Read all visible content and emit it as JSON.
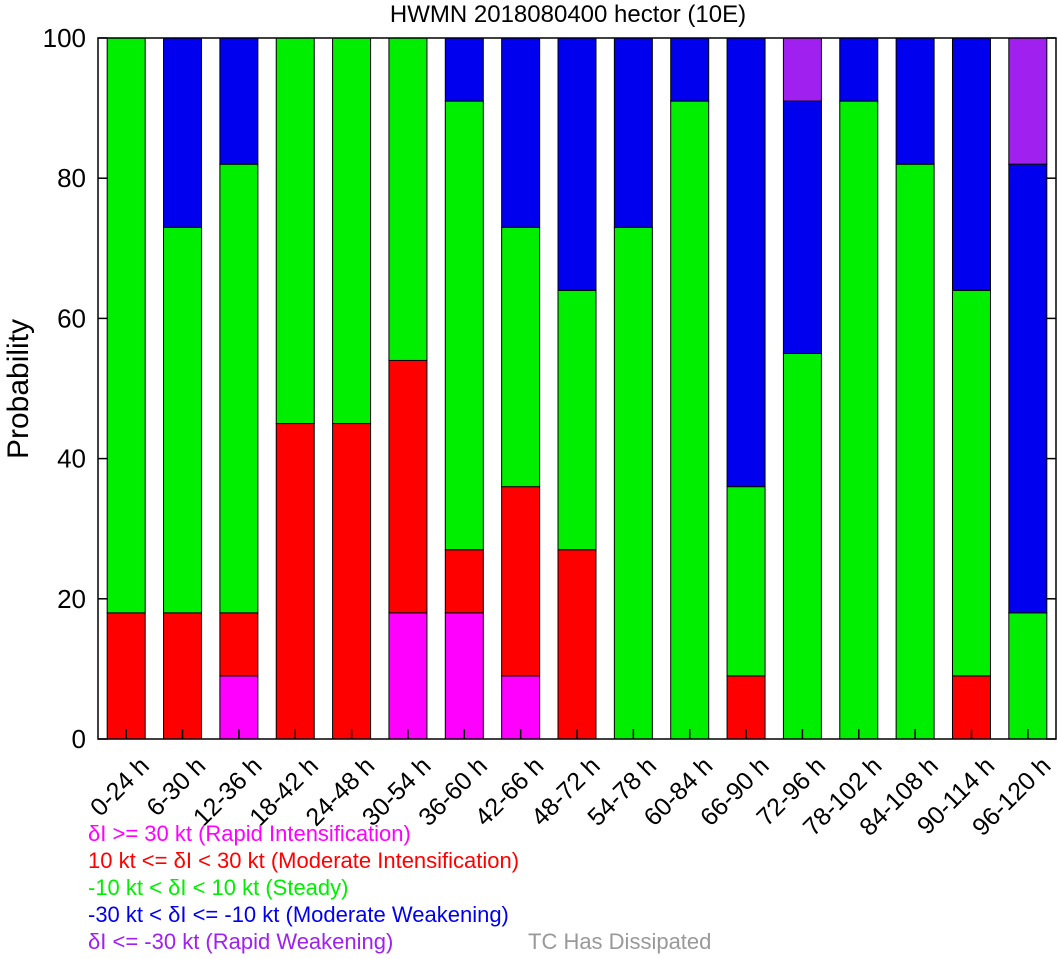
{
  "chart_data": {
    "type": "bar",
    "stacked": true,
    "title": "HWMN 2018080400 hector (10E)",
    "ylabel": "Probability",
    "xlabel": "",
    "ylim": [
      0,
      100
    ],
    "yticks": [
      0,
      20,
      40,
      60,
      80,
      100
    ],
    "grid": false,
    "categories": [
      "0-24 h",
      "6-30 h",
      "12-36 h",
      "18-42 h",
      "24-48 h",
      "30-54 h",
      "36-60 h",
      "42-66 h",
      "48-72 h",
      "54-78 h",
      "60-84 h",
      "66-90 h",
      "72-96 h",
      "78-102 h",
      "84-108 h",
      "90-114 h",
      "96-120 h"
    ],
    "series": [
      {
        "name": "δI >= 30 kt (Rapid Intensification)",
        "color": "#ff00ff",
        "values": [
          0,
          0,
          9,
          0,
          0,
          18,
          18,
          9,
          0,
          0,
          0,
          0,
          0,
          0,
          0,
          0,
          0
        ]
      },
      {
        "name": "10 kt <= δI < 30 kt (Moderate Intensification)",
        "color": "#ff0000",
        "values": [
          18,
          18,
          9,
          45,
          45,
          36,
          9,
          27,
          27,
          0,
          0,
          9,
          0,
          0,
          0,
          9,
          0
        ]
      },
      {
        "name": "-10 kt < δI < 10 kt (Steady)",
        "color": "#00ee00",
        "values": [
          82,
          55,
          64,
          55,
          55,
          46,
          64,
          37,
          37,
          73,
          91,
          27,
          55,
          91,
          82,
          55,
          18
        ]
      },
      {
        "name": "-30 kt < δI <= -10 kt (Moderate Weakening)",
        "color": "#0000ee",
        "values": [
          0,
          27,
          18,
          0,
          0,
          0,
          9,
          27,
          36,
          27,
          9,
          64,
          36,
          9,
          18,
          36,
          64
        ]
      },
      {
        "name": "δI <= -30 kt (Rapid Weakening)",
        "color": "#a020f0",
        "values": [
          0,
          0,
          0,
          0,
          0,
          0,
          0,
          0,
          0,
          0,
          0,
          0,
          9,
          0,
          0,
          0,
          18
        ]
      }
    ],
    "extra_legend": {
      "label": "TC Has Dissipated",
      "color": "#999999"
    }
  }
}
